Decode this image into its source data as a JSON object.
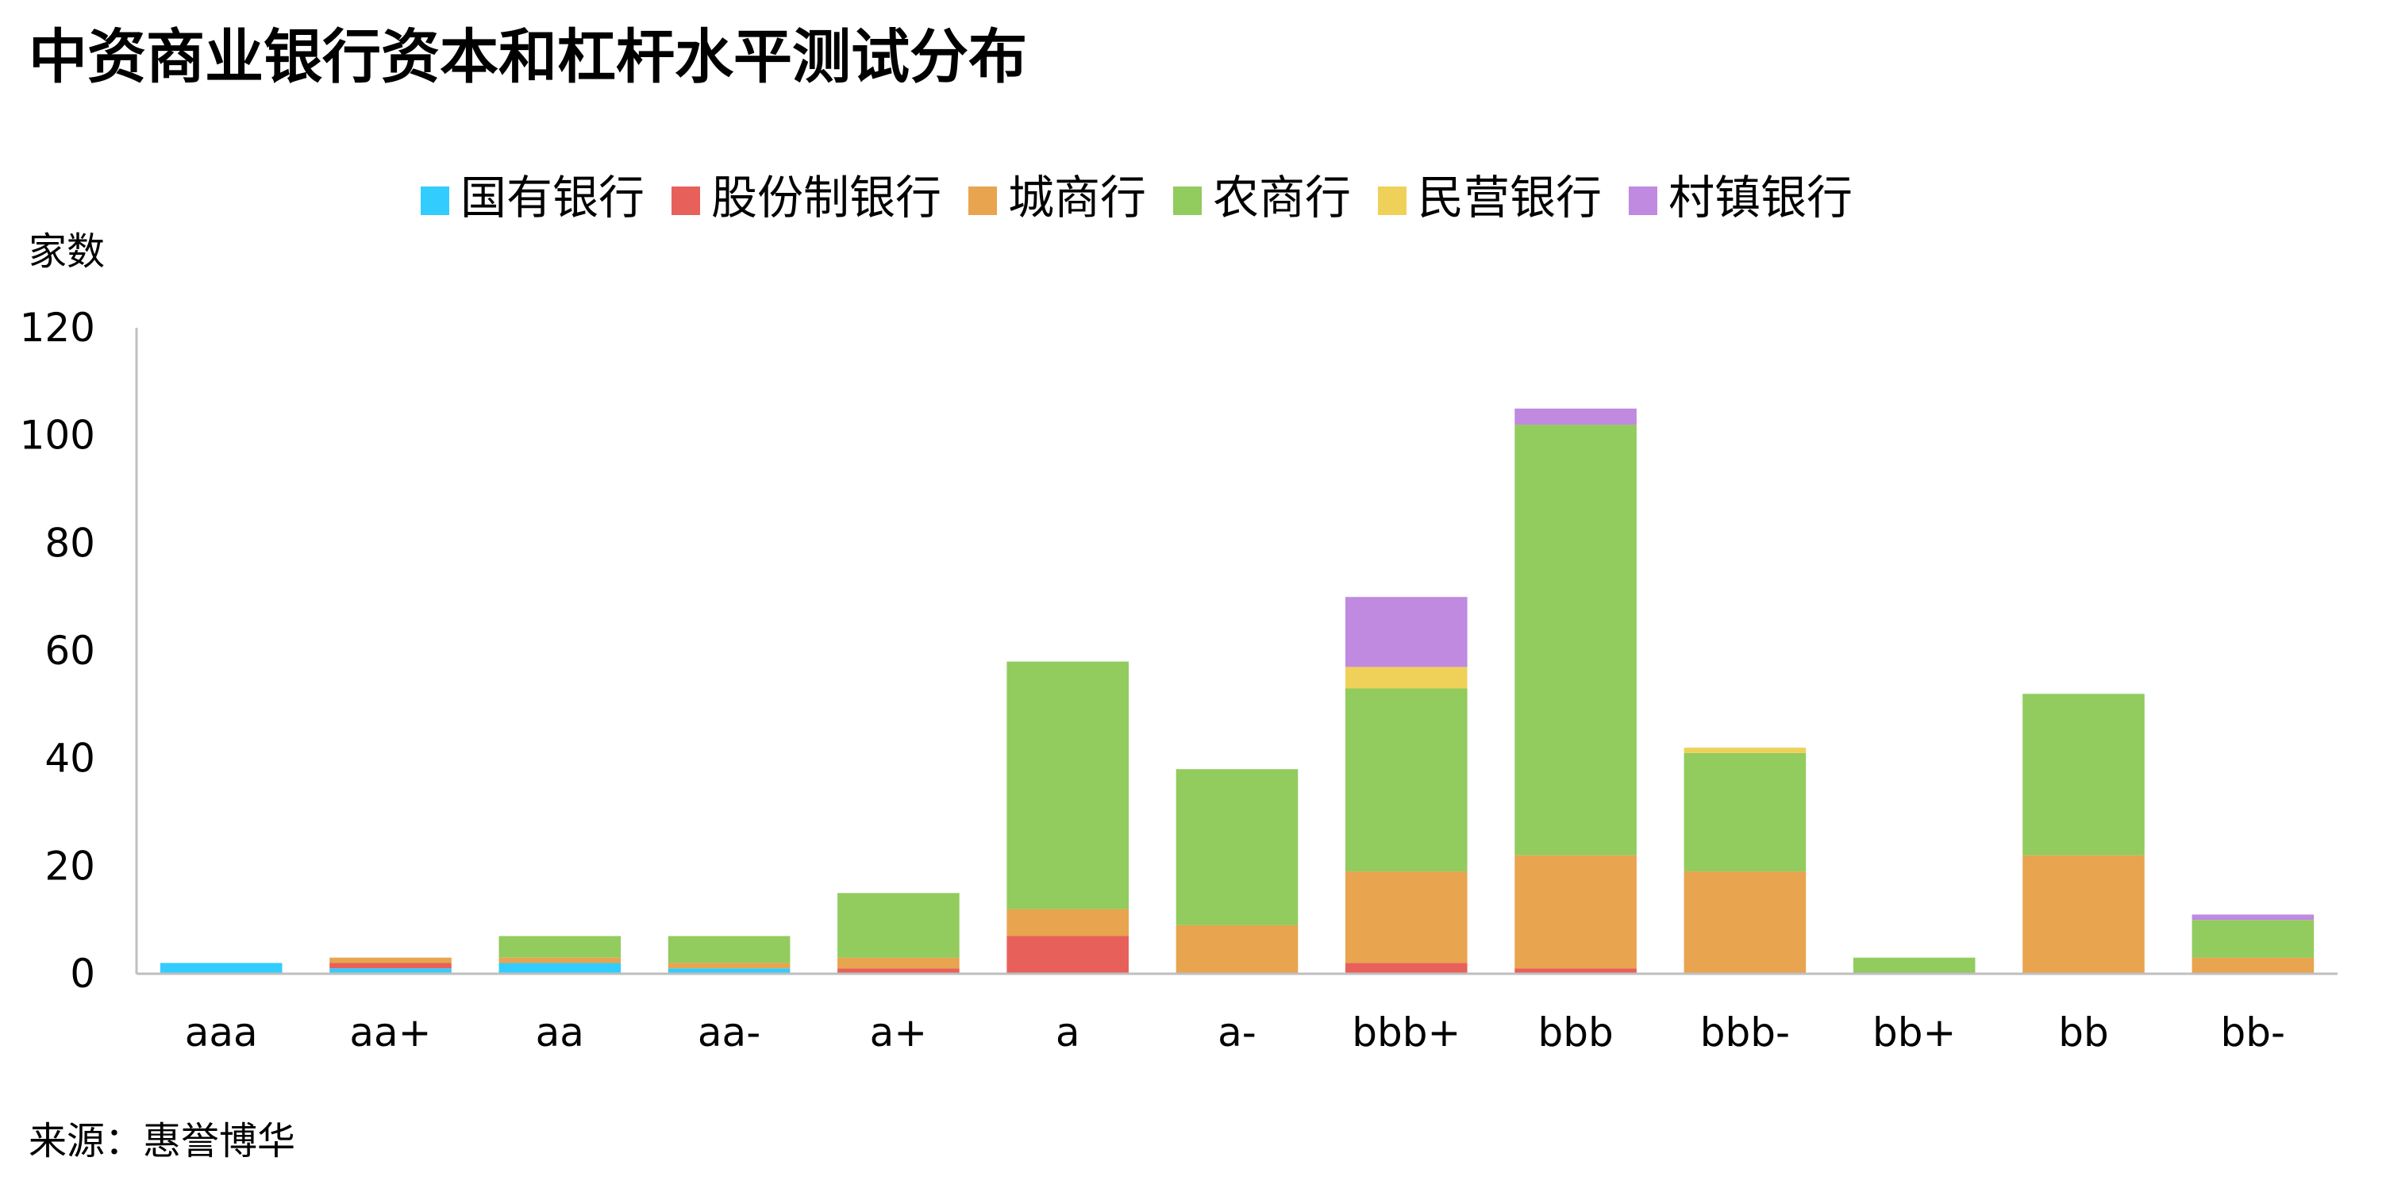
{
  "title": "中资商业银行资本和杠杆水平测试分布",
  "source": "来源：惠誉博华",
  "chart_data": {
    "type": "bar",
    "stacked": true,
    "ylabel": "家数",
    "xlabel": "",
    "ylim": [
      0,
      120
    ],
    "yticks": [
      0,
      20,
      40,
      60,
      80,
      100,
      120
    ],
    "grid": false,
    "legend_position": "top",
    "categories": [
      "aaa",
      "aa+",
      "aa",
      "aa-",
      "a+",
      "a",
      "a-",
      "bbb+",
      "bbb",
      "bbb-",
      "bb+",
      "bb",
      "bb-"
    ],
    "series": [
      {
        "name": "国有银行",
        "color": "#33ccff",
        "values": [
          2,
          1,
          2,
          1,
          0,
          0,
          0,
          0,
          0,
          0,
          0,
          0,
          0
        ]
      },
      {
        "name": "股份制银行",
        "color": "#e8605a",
        "values": [
          0,
          1,
          0,
          0,
          1,
          7,
          0,
          2,
          1,
          0,
          0,
          0,
          0
        ]
      },
      {
        "name": "城商行",
        "color": "#e8a44e",
        "values": [
          0,
          1,
          1,
          1,
          2,
          5,
          9,
          17,
          21,
          19,
          0,
          22,
          3
        ]
      },
      {
        "name": "农商行",
        "color": "#92cb5e",
        "values": [
          0,
          0,
          4,
          5,
          12,
          46,
          29,
          34,
          80,
          22,
          3,
          30,
          7
        ]
      },
      {
        "name": "民营银行",
        "color": "#efd15a",
        "values": [
          0,
          0,
          0,
          0,
          0,
          0,
          0,
          4,
          0,
          1,
          0,
          0,
          0
        ]
      },
      {
        "name": "村镇银行",
        "color": "#bf8ae0",
        "values": [
          0,
          0,
          0,
          0,
          0,
          0,
          0,
          13,
          3,
          0,
          0,
          0,
          1
        ]
      }
    ]
  }
}
